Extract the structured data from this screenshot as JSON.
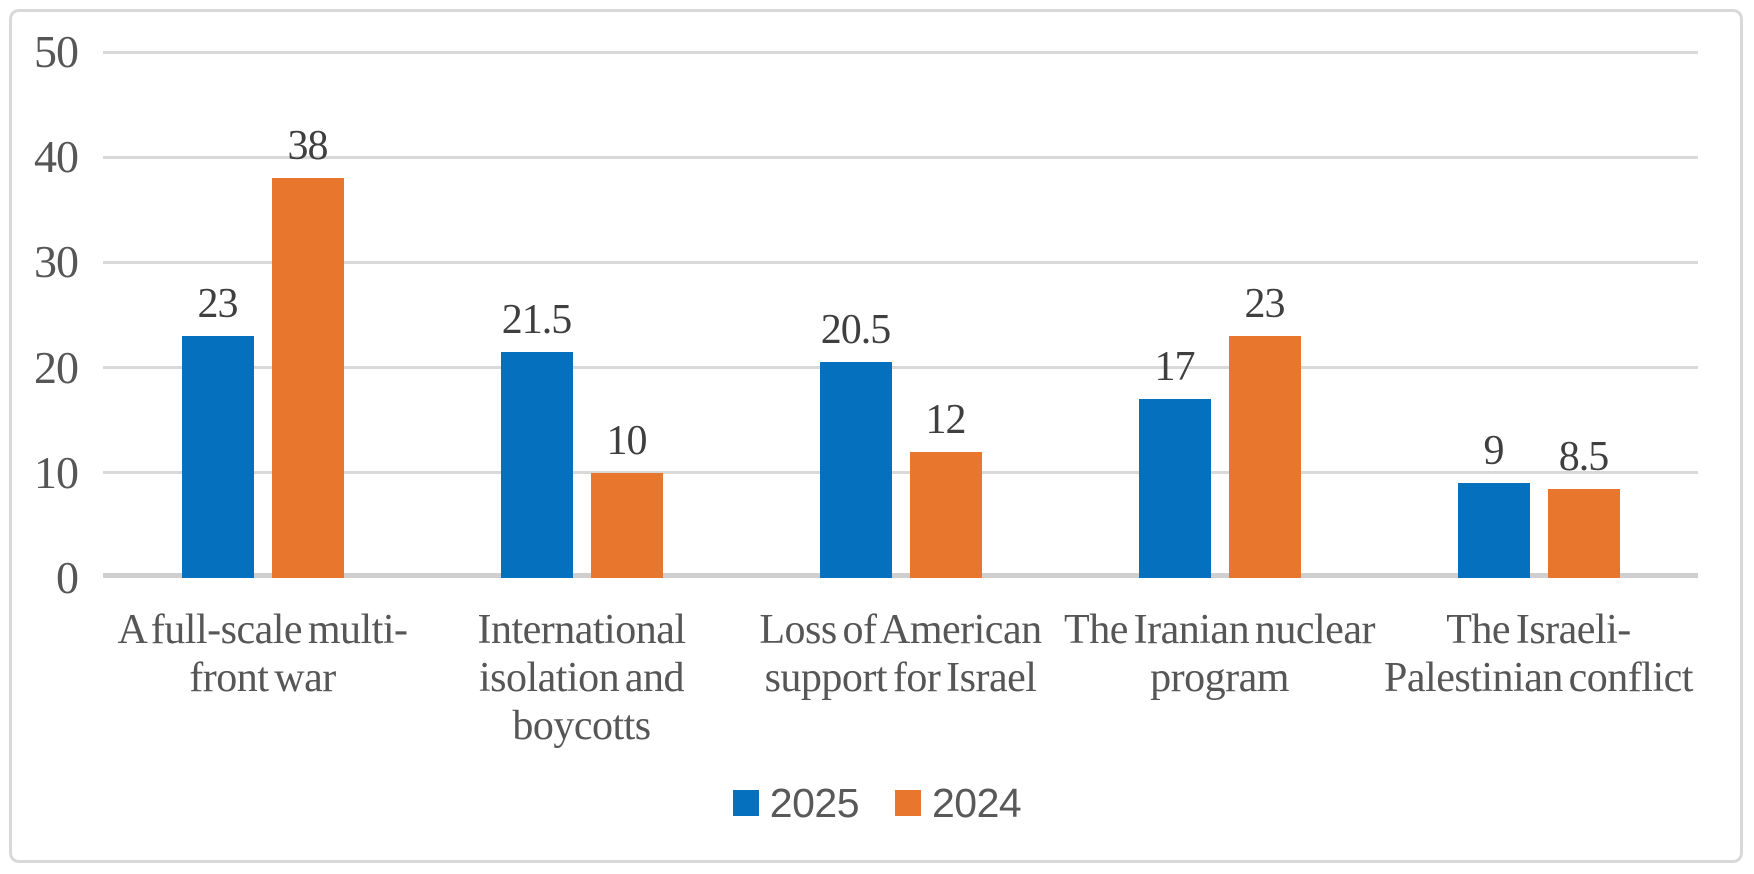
{
  "chart_data": {
    "type": "bar",
    "title": "",
    "xlabel": "",
    "ylabel": "",
    "categories": [
      "A full-scale multi-\nfront war",
      "International\nisolation and\nboycotts",
      "Loss of American\nsupport for Israel",
      "The Iranian nuclear\nprogram",
      "The Israeli-\nPalestinian conflict"
    ],
    "series": [
      {
        "name": "2025",
        "color": "#0570BE",
        "values": [
          23,
          21.5,
          20.5,
          17,
          9
        ]
      },
      {
        "name": "2024",
        "color": "#E8762D",
        "values": [
          38,
          10,
          12,
          23,
          8.5
        ]
      }
    ],
    "ylim": [
      0,
      50
    ],
    "yticks": [
      0,
      10,
      20,
      30,
      40,
      50
    ],
    "grid": true,
    "data_labels_shown": true,
    "legend_position": "bottom"
  },
  "styles": {
    "gridline_color": "#d9d9d9",
    "axis_line_color": "#d0cece",
    "tick_label_color": "#565656",
    "data_label_color": "#3f3f3f",
    "legend_label_color": "#595959",
    "border_color": "#d9d9d9",
    "background": "#ffffff"
  }
}
